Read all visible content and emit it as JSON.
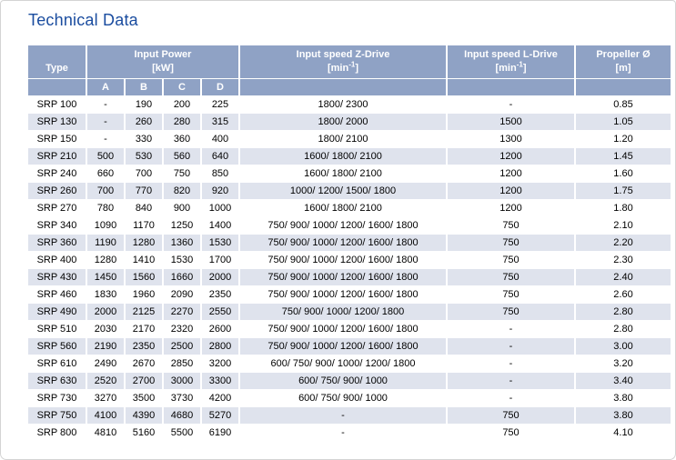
{
  "page": {
    "title": "Technical Data"
  },
  "colors": {
    "title": "#1a4c9f",
    "header_bg": "#8fa2c5",
    "row_alt": "#dfe3ed",
    "header_text": "#ffffff"
  },
  "table": {
    "headers": {
      "type": "Type",
      "input_power": {
        "title": "Input Power",
        "unit": "[kW]"
      },
      "power_subcols": [
        "A",
        "B",
        "C",
        "D"
      ],
      "z_drive": {
        "title": "Input speed Z-Drive",
        "unit_pre": "[min",
        "unit_sup": "-1",
        "unit_post": "]"
      },
      "l_drive": {
        "title": "Input speed L-Drive",
        "unit_pre": "[min",
        "unit_sup": "-1",
        "unit_post": "]"
      },
      "propeller": {
        "title": "Propeller Ø",
        "unit": "[m]"
      }
    },
    "rows": [
      {
        "type": "SRP 100",
        "a": "-",
        "b": "190",
        "c": "200",
        "d": "225",
        "z": "1800/ 2300",
        "l": "-",
        "prop": "0.85",
        "shaded": false
      },
      {
        "type": "SRP 130",
        "a": "-",
        "b": "260",
        "c": "280",
        "d": "315",
        "z": "1800/ 2000",
        "l": "1500",
        "prop": "1.05",
        "shaded": true
      },
      {
        "type": "SRP 150",
        "a": "-",
        "b": "330",
        "c": "360",
        "d": "400",
        "z": "1800/ 2100",
        "l": "1300",
        "prop": "1.20",
        "shaded": false
      },
      {
        "type": "SRP 210",
        "a": "500",
        "b": "530",
        "c": "560",
        "d": "640",
        "z": "1600/ 1800/ 2100",
        "l": "1200",
        "prop": "1.45",
        "shaded": true
      },
      {
        "type": "SRP 240",
        "a": "660",
        "b": "700",
        "c": "750",
        "d": "850",
        "z": "1600/ 1800/ 2100",
        "l": "1200",
        "prop": "1.60",
        "shaded": false
      },
      {
        "type": "SRP 260",
        "a": "700",
        "b": "770",
        "c": "820",
        "d": "920",
        "z": "1000/ 1200/ 1500/ 1800",
        "l": "1200",
        "prop": "1.75",
        "shaded": true
      },
      {
        "type": "SRP 270",
        "a": "780",
        "b": "840",
        "c": "900",
        "d": "1000",
        "z": "1600/ 1800/ 2100",
        "l": "1200",
        "prop": "1.80",
        "shaded": false
      },
      {
        "type": "SRP 340",
        "a": "1090",
        "b": "1170",
        "c": "1250",
        "d": "1400",
        "z": "750/ 900/ 1000/ 1200/ 1600/ 1800",
        "l": "750",
        "prop": "2.10",
        "shaded": false
      },
      {
        "type": "SRP 360",
        "a": "1190",
        "b": "1280",
        "c": "1360",
        "d": "1530",
        "z": "750/ 900/ 1000/ 1200/ 1600/ 1800",
        "l": "750",
        "prop": "2.20",
        "shaded": true
      },
      {
        "type": "SRP 400",
        "a": "1280",
        "b": "1410",
        "c": "1530",
        "d": "1700",
        "z": "750/ 900/ 1000/ 1200/ 1600/ 1800",
        "l": "750",
        "prop": "2.30",
        "shaded": false
      },
      {
        "type": "SRP 430",
        "a": "1450",
        "b": "1560",
        "c": "1660",
        "d": "2000",
        "z": "750/ 900/ 1000/ 1200/ 1600/ 1800",
        "l": "750",
        "prop": "2.40",
        "shaded": true
      },
      {
        "type": "SRP 460",
        "a": "1830",
        "b": "1960",
        "c": "2090",
        "d": "2350",
        "z": "750/ 900/ 1000/ 1200/ 1600/ 1800",
        "l": "750",
        "prop": "2.60",
        "shaded": false
      },
      {
        "type": "SRP 490",
        "a": "2000",
        "b": "2125",
        "c": "2270",
        "d": "2550",
        "z": "750/ 900/ 1000/ 1200/ 1800",
        "l": "750",
        "prop": "2.80",
        "shaded": true
      },
      {
        "type": "SRP 510",
        "a": "2030",
        "b": "2170",
        "c": "2320",
        "d": "2600",
        "z": "750/ 900/ 1000/ 1200/ 1600/ 1800",
        "l": "-",
        "prop": "2.80",
        "shaded": false
      },
      {
        "type": "SRP 560",
        "a": "2190",
        "b": "2350",
        "c": "2500",
        "d": "2800",
        "z": "750/ 900/ 1000/ 1200/ 1600/ 1800",
        "l": "-",
        "prop": "3.00",
        "shaded": true
      },
      {
        "type": "SRP 610",
        "a": "2490",
        "b": "2670",
        "c": "2850",
        "d": "3200",
        "z": "600/ 750/ 900/ 1000/ 1200/ 1800",
        "l": "-",
        "prop": "3.20",
        "shaded": false
      },
      {
        "type": "SRP 630",
        "a": "2520",
        "b": "2700",
        "c": "3000",
        "d": "3300",
        "z": "600/ 750/ 900/ 1000",
        "l": "-",
        "prop": "3.40",
        "shaded": true
      },
      {
        "type": "SRP 730",
        "a": "3270",
        "b": "3500",
        "c": "3730",
        "d": "4200",
        "z": "600/ 750/ 900/ 1000",
        "l": "-",
        "prop": "3.80",
        "shaded": false
      },
      {
        "type": "SRP 750",
        "a": "4100",
        "b": "4390",
        "c": "4680",
        "d": "5270",
        "z": "-",
        "l": "750",
        "prop": "3.80",
        "shaded": true
      },
      {
        "type": "SRP 800",
        "a": "4810",
        "b": "5160",
        "c": "5500",
        "d": "6190",
        "z": "-",
        "l": "750",
        "prop": "4.10",
        "shaded": false
      }
    ]
  }
}
